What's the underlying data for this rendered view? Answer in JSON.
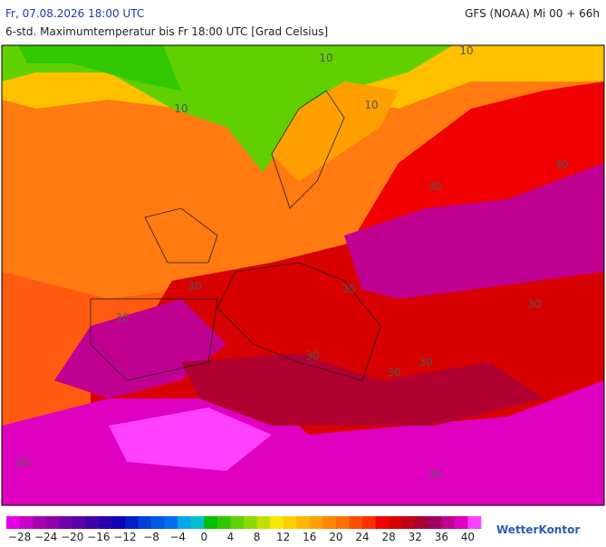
{
  "header": {
    "title": "Fr, 07.08.2026 18:00 UTC",
    "model": "GFS (NOAA) Mi 00 + 66h",
    "subtitle": "6-std. Maximumtemperatur bis Fr 18:00 UTC [Grad Celsius]"
  },
  "map": {
    "contour_labels": [
      "10",
      "10",
      "10",
      "10",
      "30",
      "30",
      "30",
      "30",
      "30",
      "30",
      "30",
      "30",
      "30",
      "30",
      "30"
    ]
  },
  "legend": {
    "colors": [
      "#e800e8",
      "#c800c8",
      "#a800b0",
      "#9000a8",
      "#7000a8",
      "#5800a8",
      "#4000a8",
      "#2800b0",
      "#1000b8",
      "#0020c8",
      "#0040d8",
      "#0058e8",
      "#0070f0",
      "#00a8e8",
      "#00c0d0",
      "#00c000",
      "#30c800",
      "#60d000",
      "#90d800",
      "#c0e000",
      "#f8e800",
      "#ffd000",
      "#ffb800",
      "#ffa000",
      "#ff8800",
      "#ff7000",
      "#ff5000",
      "#ff3000",
      "#f00000",
      "#d80000",
      "#c00018",
      "#a80030",
      "#a00060",
      "#c00090",
      "#e000c0",
      "#ff40ff"
    ],
    "labels": [
      "−28",
      "−24",
      "−20",
      "−16",
      "−12",
      "−8",
      "−4",
      "0",
      "4",
      "8",
      "12",
      "16",
      "20",
      "24",
      "28",
      "32",
      "36",
      "40"
    ]
  },
  "brand": "WetterKontor"
}
